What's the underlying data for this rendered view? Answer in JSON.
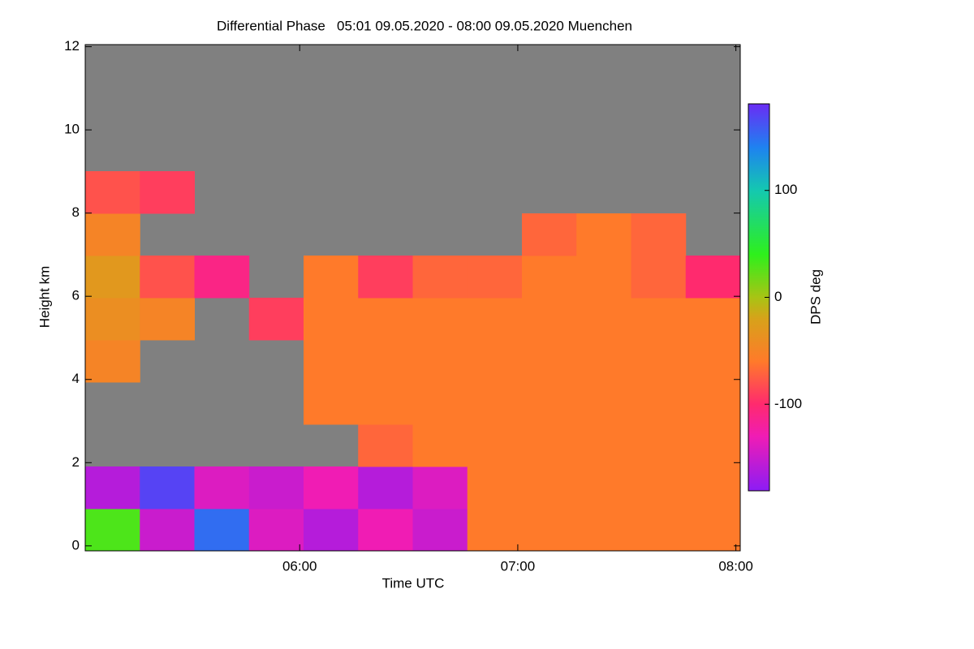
{
  "chart_data": {
    "type": "heatmap",
    "title": "Differential Phase   05:01 09.05.2020 - 08:00 09.05.2020 Muenchen",
    "x_label": "Time UTC",
    "y_label": "Height km",
    "colorbar_label": "DPS deg",
    "xlim": [
      5.0167,
      8.02
    ],
    "xticks": [
      {
        "value": 6,
        "label": "06:00"
      },
      {
        "value": 7,
        "label": "07:00"
      },
      {
        "value": 8,
        "label": "08:00"
      }
    ],
    "ylim": [
      -0.12,
      12.05
    ],
    "yticks": [
      0,
      2,
      4,
      6,
      8,
      10,
      12
    ],
    "clim": [
      -181,
      181
    ],
    "cticks": [
      -100,
      0,
      100
    ],
    "background_color": "#808080",
    "colormap": [
      {
        "value": -181,
        "color": "#8c1cf5"
      },
      {
        "value": -130,
        "color": "#f01cb4"
      },
      {
        "value": -100,
        "color": "#ff2a6e"
      },
      {
        "value": -60,
        "color": "#ff7a2a"
      },
      {
        "value": -20,
        "color": "#d7a21a"
      },
      {
        "value": 0,
        "color": "#a8c414"
      },
      {
        "value": 40,
        "color": "#2ef01c"
      },
      {
        "value": 100,
        "color": "#14c8b0"
      },
      {
        "value": 140,
        "color": "#1e82f0"
      },
      {
        "value": 181,
        "color": "#6a2cf5"
      }
    ],
    "z": [
      [
        30,
        -150,
        150,
        -140,
        -160,
        -130,
        -150,
        -60,
        -60,
        -60,
        -60,
        -60
      ],
      [
        -160,
        170,
        -140,
        -150,
        -130,
        -160,
        -140,
        -60,
        -60,
        -60,
        -60,
        -60
      ],
      [
        null,
        null,
        null,
        null,
        null,
        -70,
        -60,
        -60,
        -60,
        -60,
        -60,
        -60
      ],
      [
        null,
        null,
        null,
        null,
        -60,
        -60,
        -60,
        -60,
        -60,
        -60,
        -60,
        -60
      ],
      [
        -50,
        null,
        null,
        null,
        -60,
        -60,
        -60,
        -60,
        -60,
        -60,
        -60,
        -60
      ],
      [
        -40,
        -50,
        null,
        -90,
        -60,
        -60,
        -60,
        -60,
        -60,
        -60,
        -60,
        -60
      ],
      [
        -30,
        -80,
        -110,
        null,
        -60,
        -90,
        -70,
        -70,
        -60,
        -60,
        -70,
        -100
      ],
      [
        -50,
        null,
        null,
        null,
        null,
        null,
        null,
        null,
        -70,
        -60,
        -70,
        null
      ],
      [
        -80,
        -90,
        null,
        null,
        null,
        null,
        null,
        null,
        null,
        null,
        null,
        null
      ],
      [
        null,
        null,
        null,
        null,
        null,
        null,
        null,
        null,
        null,
        null,
        null,
        null
      ],
      [
        null,
        null,
        null,
        null,
        null,
        null,
        null,
        null,
        null,
        null,
        null,
        null
      ],
      [
        null,
        null,
        null,
        null,
        null,
        null,
        null,
        null,
        null,
        null,
        null,
        null
      ]
    ]
  }
}
